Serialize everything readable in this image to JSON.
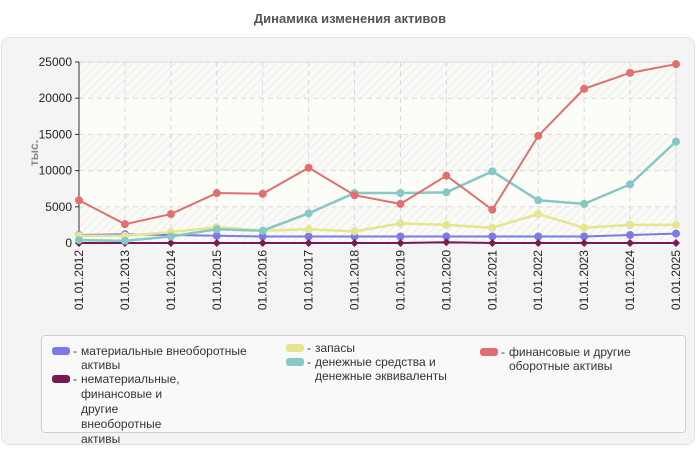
{
  "title": "Динамика изменения активов",
  "chart_data": {
    "type": "line",
    "title": "Динамика изменения активов",
    "xlabel": "",
    "ylabel": "тыс.",
    "ylim": [
      0,
      25000
    ],
    "yticks": [
      0,
      5000,
      10000,
      15000,
      20000,
      25000
    ],
    "grid": true,
    "legend_position": "bottom",
    "categories": [
      "01.01.2012",
      "01.01.2013",
      "01.01.2014",
      "01.01.2015",
      "01.01.2016",
      "01.01.2017",
      "01.01.2018",
      "01.01.2019",
      "01.01.2020",
      "01.01.2021",
      "01.01.2022",
      "01.01.2023",
      "01.01.2024",
      "01.01.2025"
    ],
    "series": [
      {
        "name": "материальные внеоборотные активы",
        "color": "#7b7be8",
        "values": [
          1100,
          1200,
          1100,
          1000,
          900,
          900,
          900,
          900,
          900,
          900,
          900,
          900,
          1100,
          1300
        ]
      },
      {
        "name": "нематериальные, финансовые и другие внеоборотные активы",
        "color": "#7a1a55",
        "values": [
          0,
          0,
          0,
          0,
          0,
          0,
          0,
          0,
          100,
          0,
          0,
          0,
          0,
          0
        ]
      },
      {
        "name": "запасы",
        "color": "#e6e68f",
        "values": [
          1000,
          1000,
          1500,
          2200,
          1700,
          1900,
          1600,
          2700,
          2500,
          2100,
          4000,
          2100,
          2500,
          2500
        ]
      },
      {
        "name": "денежные средства и денежные эквиваленты",
        "color": "#86c7c7",
        "values": [
          400,
          300,
          900,
          1900,
          1700,
          4100,
          6900,
          6900,
          7000,
          9900,
          5900,
          5400,
          8100,
          14000
        ]
      },
      {
        "name": "финансовые и другие оборотные активы",
        "color": "#e07070",
        "values": [
          5900,
          2600,
          4000,
          6900,
          6800,
          10400,
          6600,
          5400,
          9300,
          4600,
          14800,
          21300,
          23500,
          24700
        ]
      }
    ]
  },
  "legend": [
    {
      "label": "материальные внеоборотные активы",
      "color": "#7b7be8"
    },
    {
      "label": "нематериальные, финансовые и другие внеоборотные активы",
      "color": "#7a1a55"
    },
    {
      "label": "запасы",
      "color": "#e6e68f"
    },
    {
      "label": "денежные средства и денежные эквиваленты",
      "color": "#86c7c7"
    },
    {
      "label": "финансовые и другие оборотные активы",
      "color": "#e07070"
    }
  ]
}
